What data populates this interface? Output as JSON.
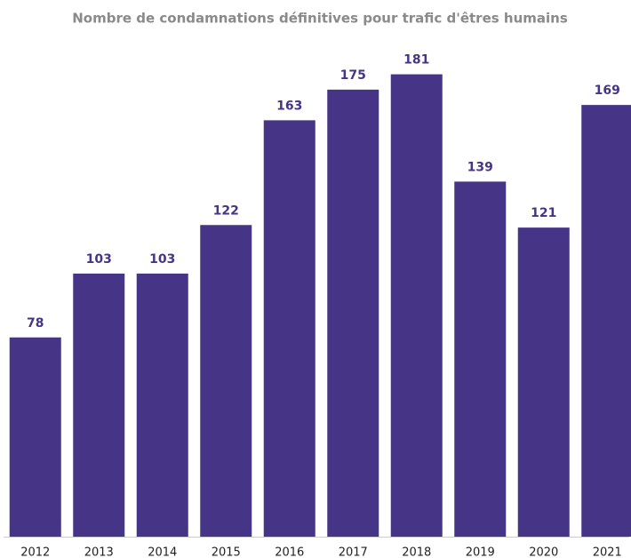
{
  "chart_data": {
    "type": "bar",
    "title": "Nombre de condamnations définitives pour trafic d'êtres humains",
    "categories": [
      "2012",
      "2013",
      "2014",
      "2015",
      "2016",
      "2017",
      "2018",
      "2019",
      "2020",
      "2021"
    ],
    "values": [
      78,
      103,
      103,
      122,
      163,
      175,
      181,
      139,
      121,
      169
    ],
    "color": "#463586",
    "ylim": [
      0,
      200
    ]
  }
}
